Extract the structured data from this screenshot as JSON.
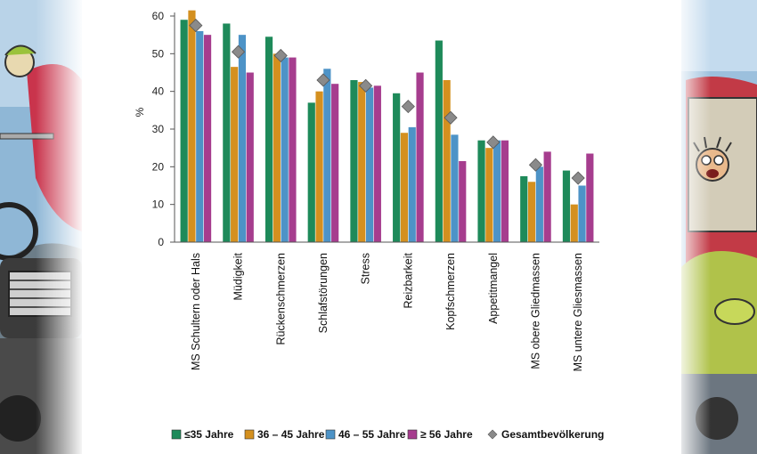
{
  "colors": {
    "s35": "#1e8a5a",
    "s36_45": "#d4901f",
    "s46_55": "#4d93c7",
    "s56": "#a63d8e",
    "total_marker": "#8a8a8a",
    "axis": "#555555"
  },
  "decoration": {
    "left_icon": "cartoon-cyclist-icon",
    "right_icon": "cartoon-driver-icon"
  },
  "chart_data": {
    "type": "bar",
    "ylabel": "%",
    "ylim": [
      0,
      60
    ],
    "yticks": [
      0,
      10,
      20,
      30,
      40,
      50,
      60
    ],
    "legend_position": "bottom",
    "grid": false,
    "categories": [
      "MS Schultern oder Hals",
      "Müdigkeit",
      "Rückenschmerzen",
      "Schlafstörungen",
      "Stress",
      "Reizbarkeit",
      "Kopfschmerzen",
      "Appetitmangel",
      "MS obere Gliedmassen",
      "MS untere Gliesmassen"
    ],
    "series": [
      {
        "name": "≤35 Jahre",
        "color": "#1e8a5a",
        "values": [
          59,
          58,
          54.5,
          37,
          43,
          39.5,
          53.5,
          27,
          17.5,
          19
        ]
      },
      {
        "name": "36 – 45 Jahre",
        "color": "#d4901f",
        "values": [
          61.5,
          46.5,
          50,
          40,
          42.5,
          29,
          43,
          25,
          16,
          10
        ]
      },
      {
        "name": "46 – 55 Jahre",
        "color": "#4d93c7",
        "values": [
          56,
          55,
          49,
          46,
          41,
          30.5,
          28.5,
          27,
          20,
          15
        ]
      },
      {
        "name": "≥ 56 Jahre",
        "color": "#a63d8e",
        "values": [
          55,
          45,
          49,
          42,
          41.5,
          45,
          21.5,
          27,
          24,
          23.5
        ]
      }
    ],
    "marker_series": {
      "name": "Gesamtbevölkerung",
      "values": [
        57.5,
        50.5,
        49.5,
        43,
        41.5,
        36,
        33,
        26.5,
        20.5,
        17
      ]
    }
  }
}
